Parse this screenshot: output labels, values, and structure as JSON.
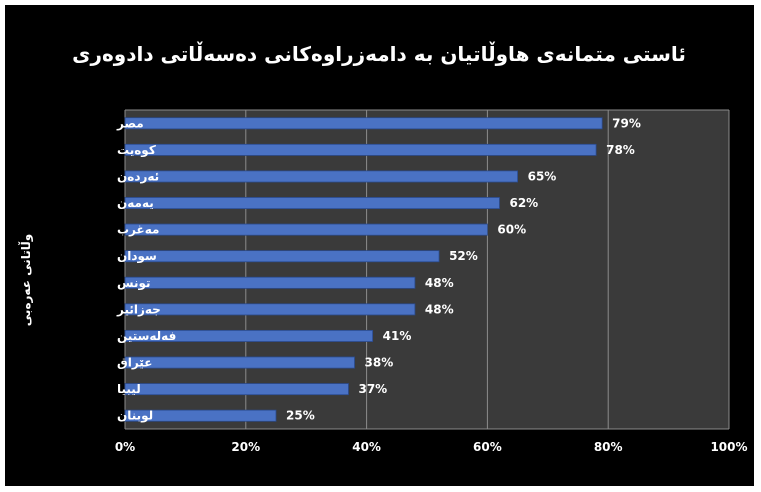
{
  "chart_data": {
    "type": "bar",
    "orientation": "horizontal",
    "title": "ئاستی متمانەی هاوڵاتیان بە دامەزراوەکانی دەسەڵاتی دادوەری",
    "ylabel": "وڵاتانی عەرەبی",
    "xlabel": "",
    "categories": [
      "مصر",
      "کوەیت",
      "ئەردەن",
      "یەمەن",
      "مەغرب",
      "سودان",
      "تونس",
      "جەزائیر",
      "فەلەستین",
      "عێراق",
      "لیبیا",
      "لوبنان"
    ],
    "values": [
      79,
      78,
      65,
      62,
      60,
      52,
      48,
      48,
      41,
      38,
      37,
      25
    ],
    "data_labels": [
      "79%",
      "78%",
      "65%",
      "62%",
      "60%",
      "52%",
      "48%",
      "48%",
      "41%",
      "38%",
      "37%",
      "25%"
    ],
    "xlim": [
      0,
      100
    ],
    "x_ticks": [
      "0%",
      "20%",
      "40%",
      "60%",
      "80%",
      "100%"
    ],
    "grid": true,
    "legend": "none",
    "colors": {
      "background": "#000000",
      "plot_area": "#3a3a3a",
      "gridline": "#8c8c8c",
      "bar_fill": "#4a72c4",
      "bar_edge": "#2a4a8c",
      "text": "#ffffff"
    }
  }
}
